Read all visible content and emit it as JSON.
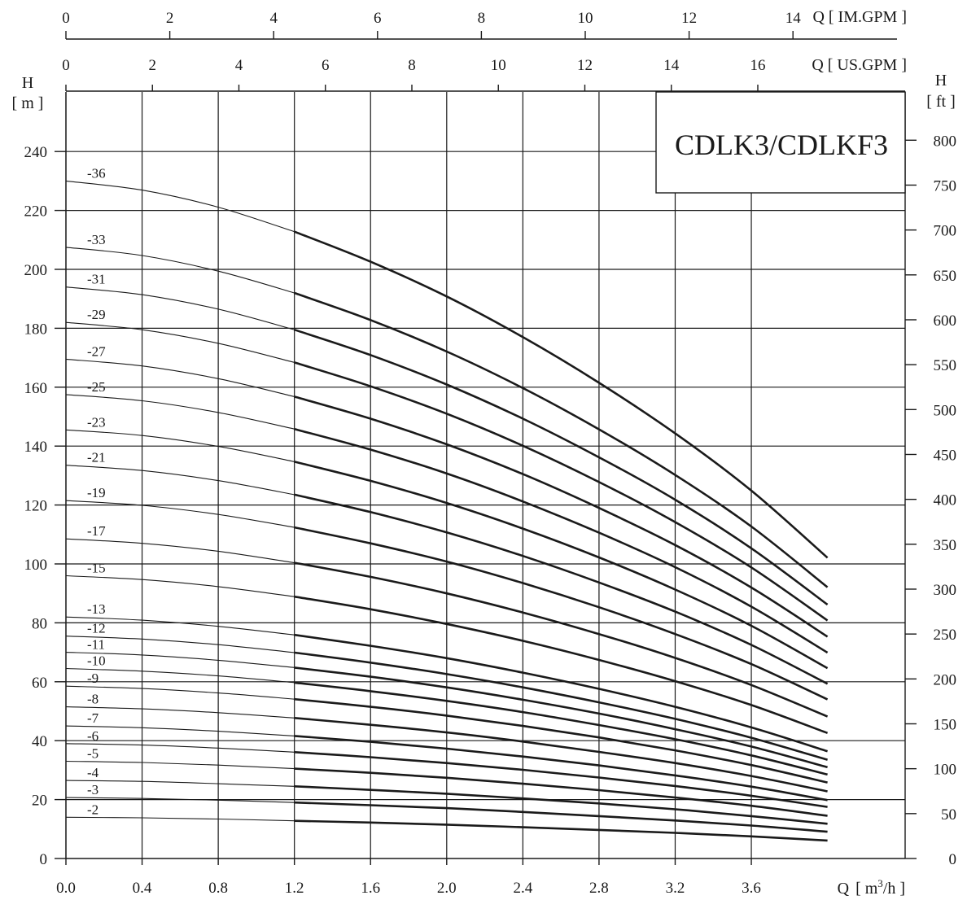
{
  "chart_data": {
    "type": "line",
    "title": "CDLK3/CDLKF3",
    "x_axis": {
      "label_prefix": "Q",
      "label_unit": "[ m",
      "label_sup": "3",
      "label_suffix": "/h ]",
      "range": [
        0,
        4.4
      ],
      "ticks": [
        0,
        0.4,
        0.8,
        1.2,
        1.6,
        2.0,
        2.4,
        2.8,
        3.2,
        3.6
      ],
      "tick_labels": [
        "0.0",
        "0.4",
        "0.8",
        "1.2",
        "1.6",
        "2.0",
        "2.4",
        "2.8",
        "3.2",
        "3.6"
      ]
    },
    "x_axis_top_us": {
      "label": "Q [ US.GPM ]",
      "ticks": [
        0,
        2,
        4,
        6,
        8,
        10,
        12,
        14,
        16
      ],
      "tick_labels": [
        "0",
        "2",
        "4",
        "6",
        "8",
        "10",
        "12",
        "14",
        "16"
      ]
    },
    "x_axis_top_im": {
      "label": "Q [ IM.GPM ]",
      "ticks": [
        0,
        2,
        4,
        6,
        8,
        10,
        12,
        14
      ],
      "tick_labels": [
        "0",
        "2",
        "4",
        "6",
        "8",
        "10",
        "12",
        "14"
      ]
    },
    "y_axis_left": {
      "label": "H",
      "unit": "[ m ]",
      "range": [
        0,
        260
      ],
      "ticks": [
        0,
        20,
        40,
        60,
        80,
        100,
        120,
        140,
        160,
        180,
        200,
        220,
        240
      ],
      "tick_labels": [
        "0",
        "20",
        "40",
        "60",
        "80",
        "100",
        "120",
        "140",
        "160",
        "180",
        "200",
        "220",
        "240"
      ]
    },
    "y_axis_right": {
      "label": "H",
      "unit": "[ ft ]",
      "ticks": [
        0,
        50,
        100,
        150,
        200,
        250,
        300,
        350,
        400,
        450,
        500,
        550,
        600,
        650,
        700,
        750,
        800
      ],
      "tick_labels": [
        "0",
        "50",
        "100",
        "150",
        "200",
        "250",
        "300",
        "350",
        "400",
        "450",
        "500",
        "550",
        "600",
        "650",
        "700",
        "750",
        "800"
      ]
    },
    "grid": true,
    "operating_range_start": 1.2,
    "x": [
      0,
      0.4,
      0.8,
      1.2,
      1.6,
      2.0,
      2.4,
      2.8,
      3.2,
      3.6,
      4.0
    ],
    "series": [
      {
        "name": "-2",
        "values": [
          14.0,
          13.8,
          13.4,
          12.8,
          12.2,
          11.5,
          10.6,
          9.7,
          8.7,
          7.5,
          6.1
        ]
      },
      {
        "name": "-3",
        "values": [
          20.7,
          20.4,
          19.8,
          19.0,
          18.1,
          17.1,
          15.8,
          14.4,
          12.9,
          11.2,
          9.1
        ]
      },
      {
        "name": "-4",
        "values": [
          26.5,
          26.2,
          25.4,
          24.5,
          23.3,
          22.0,
          20.4,
          18.7,
          16.7,
          14.4,
          11.8
        ]
      },
      {
        "name": "-5",
        "values": [
          33.0,
          32.6,
          31.7,
          30.5,
          29.1,
          27.4,
          25.4,
          23.2,
          20.7,
          17.9,
          14.5
        ]
      },
      {
        "name": "-6",
        "values": [
          39.0,
          38.5,
          37.5,
          36.1,
          34.4,
          32.4,
          30.1,
          27.5,
          24.6,
          21.3,
          17.5
        ]
      },
      {
        "name": "-7",
        "values": [
          45.0,
          44.4,
          43.2,
          41.6,
          39.6,
          37.3,
          34.6,
          31.6,
          28.2,
          24.4,
          19.8
        ]
      },
      {
        "name": "-8",
        "values": [
          51.5,
          50.8,
          49.5,
          47.7,
          45.4,
          42.8,
          39.7,
          36.2,
          32.4,
          28.0,
          22.8
        ]
      },
      {
        "name": "-9",
        "values": [
          58.5,
          57.7,
          56.2,
          54.1,
          51.5,
          48.5,
          45.0,
          41.1,
          36.7,
          31.7,
          25.8
        ]
      },
      {
        "name": "-10",
        "values": [
          64.5,
          63.6,
          62.0,
          59.7,
          56.8,
          53.5,
          49.7,
          45.3,
          40.5,
          35.0,
          28.5
        ]
      },
      {
        "name": "-11",
        "values": [
          70.0,
          69.1,
          67.3,
          64.8,
          61.7,
          58.1,
          53.9,
          49.2,
          43.9,
          38.0,
          31.0
        ]
      },
      {
        "name": "-12",
        "values": [
          75.5,
          74.5,
          72.6,
          69.9,
          66.5,
          62.6,
          58.1,
          53.0,
          47.4,
          41.0,
          33.5
        ]
      },
      {
        "name": "-13",
        "values": [
          82.0,
          80.9,
          78.8,
          75.9,
          72.2,
          68.0,
          63.1,
          57.6,
          51.5,
          44.5,
          36.4
        ]
      },
      {
        "name": "-15",
        "values": [
          96.0,
          94.7,
          92.3,
          88.9,
          84.6,
          79.6,
          73.9,
          67.4,
          60.2,
          52.1,
          42.6
        ]
      },
      {
        "name": "-17",
        "values": [
          108.5,
          107.0,
          104.3,
          100.4,
          95.6,
          90.0,
          83.5,
          76.2,
          68.1,
          58.9,
          48.2
        ]
      },
      {
        "name": "-19",
        "values": [
          121.5,
          119.9,
          116.8,
          112.4,
          107.0,
          100.8,
          93.5,
          85.3,
          76.2,
          66.0,
          54.0
        ]
      },
      {
        "name": "-21",
        "values": [
          133.5,
          131.7,
          128.3,
          123.5,
          117.6,
          110.7,
          102.7,
          93.7,
          83.8,
          72.5,
          59.3
        ]
      },
      {
        "name": "-23",
        "values": [
          145.5,
          143.6,
          139.9,
          134.7,
          128.2,
          120.7,
          112.0,
          102.2,
          91.3,
          79.0,
          64.6
        ]
      },
      {
        "name": "-25",
        "values": [
          157.5,
          155.4,
          151.4,
          145.8,
          138.8,
          130.7,
          121.2,
          110.6,
          98.9,
          85.5,
          69.9
        ]
      },
      {
        "name": "-27",
        "values": [
          169.5,
          167.2,
          162.9,
          156.8,
          149.3,
          140.6,
          130.5,
          119.0,
          106.4,
          92.0,
          75.3
        ]
      },
      {
        "name": "-29",
        "values": [
          182.0,
          179.5,
          174.9,
          168.4,
          160.3,
          151.0,
          140.1,
          127.8,
          114.2,
          98.8,
          80.8
        ]
      },
      {
        "name": "-31",
        "values": [
          194.0,
          191.4,
          186.5,
          179.5,
          170.9,
          160.9,
          149.3,
          136.2,
          121.8,
          105.3,
          86.2
        ]
      },
      {
        "name": "-33",
        "values": [
          207.5,
          204.7,
          199.4,
          192.0,
          182.8,
          172.1,
          159.7,
          145.7,
          130.2,
          112.7,
          92.1
        ]
      },
      {
        "name": "-36",
        "values": [
          230.0,
          226.9,
          221.1,
          212.8,
          202.6,
          190.8,
          177.0,
          161.5,
          144.3,
          124.9,
          102.1
        ]
      }
    ]
  }
}
